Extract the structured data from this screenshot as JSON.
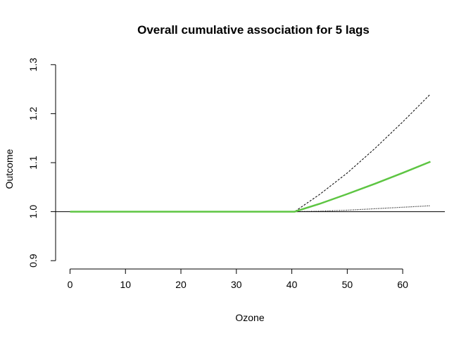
{
  "chart_data": {
    "type": "line",
    "title": "Overall cumulative association for 5 lags",
    "xlabel": "Ozone",
    "ylabel": "Outcome",
    "xlim": [
      -2.6,
      67.6
    ],
    "ylim": [
      0.883,
      1.317
    ],
    "x_ticks": [
      0,
      10,
      20,
      30,
      40,
      50,
      60
    ],
    "y_ticks": [
      0.9,
      1.0,
      1.1,
      1.2,
      1.3
    ],
    "x_tick_labels": [
      "0",
      "10",
      "20",
      "30",
      "40",
      "50",
      "60"
    ],
    "y_tick_labels": [
      "0.9",
      "1.0",
      "1.1",
      "1.2",
      "1.3"
    ],
    "reference_line": 1.0,
    "grid": false,
    "legend": "none",
    "series": [
      {
        "role": "estimate",
        "color": "#5dc542",
        "style": "solid",
        "x": [
          0,
          10,
          20,
          30,
          40.5,
          45,
          50,
          55,
          60,
          65
        ],
        "y": [
          1.0,
          1.0,
          1.0,
          1.0,
          1.0,
          1.016,
          1.036,
          1.057,
          1.079,
          1.102
        ]
      },
      {
        "role": "upper",
        "color": "#000000",
        "style": "dashed",
        "x": [
          0,
          10,
          20,
          30,
          40.5,
          45,
          50,
          55,
          60,
          65
        ],
        "y": [
          1.0,
          1.0,
          1.0,
          1.0,
          1.0,
          1.035,
          1.079,
          1.129,
          1.183,
          1.24
        ]
      },
      {
        "role": "lower",
        "color": "#000000",
        "style": "dotted",
        "x": [
          0,
          10,
          20,
          30,
          40.5,
          45,
          50,
          55,
          60,
          65
        ],
        "y": [
          1.0,
          1.0,
          1.0,
          1.0,
          1.0,
          1.001,
          1.003,
          1.006,
          1.009,
          1.012
        ]
      }
    ]
  }
}
